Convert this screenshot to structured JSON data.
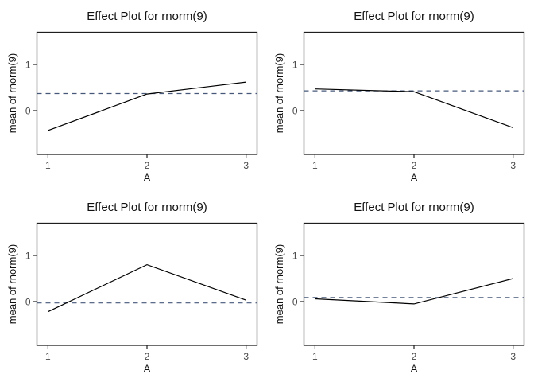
{
  "colors": {
    "background": "#ffffff",
    "line": "#000000",
    "ref_line": "#46587a",
    "axis": "#1f1f1f",
    "title": "#111111",
    "tick_label": "#474747"
  },
  "chart_data": [
    {
      "type": "line",
      "panel": "top-left",
      "title": "Effect Plot for rnorm(9)",
      "xlabel": "A",
      "ylabel": "mean of rnorm(9)",
      "x": [
        1,
        2,
        3
      ],
      "x_tick_labels": [
        "1",
        "2",
        "3"
      ],
      "values": [
        -0.43,
        0.36,
        0.62
      ],
      "ref_line_y": 0.37,
      "y_ticks": [
        0,
        1
      ],
      "y_tick_labels": [
        "0",
        "1"
      ],
      "ylim": [
        -0.95,
        1.7
      ],
      "grid": false
    },
    {
      "type": "line",
      "panel": "top-right",
      "title": "Effect Plot for rnorm(9)",
      "xlabel": "A",
      "ylabel": "mean of rnorm(9)",
      "x": [
        1,
        2,
        3
      ],
      "x_tick_labels": [
        "1",
        "2",
        "3"
      ],
      "values": [
        0.47,
        0.41,
        -0.37
      ],
      "ref_line_y": 0.43,
      "y_ticks": [
        0,
        1
      ],
      "y_tick_labels": [
        "0",
        "1"
      ],
      "ylim": [
        -0.95,
        1.7
      ],
      "grid": false
    },
    {
      "type": "line",
      "panel": "bottom-left",
      "title": "Effect Plot for rnorm(9)",
      "xlabel": "A",
      "ylabel": "mean of rnorm(9)",
      "x": [
        1,
        2,
        3
      ],
      "x_tick_labels": [
        "1",
        "2",
        "3"
      ],
      "values": [
        -0.22,
        0.8,
        0.03
      ],
      "ref_line_y": -0.03,
      "y_ticks": [
        0,
        1
      ],
      "y_tick_labels": [
        "0",
        "1"
      ],
      "ylim": [
        -0.95,
        1.7
      ],
      "grid": false
    },
    {
      "type": "line",
      "panel": "bottom-right",
      "title": "Effect Plot for rnorm(9)",
      "xlabel": "A",
      "ylabel": "mean of rnorm(9)",
      "x": [
        1,
        2,
        3
      ],
      "x_tick_labels": [
        "1",
        "2",
        "3"
      ],
      "values": [
        0.06,
        -0.05,
        0.5
      ],
      "ref_line_y": 0.09,
      "y_ticks": [
        0,
        1
      ],
      "y_tick_labels": [
        "0",
        "1"
      ],
      "ylim": [
        -0.95,
        1.7
      ],
      "grid": false
    }
  ]
}
